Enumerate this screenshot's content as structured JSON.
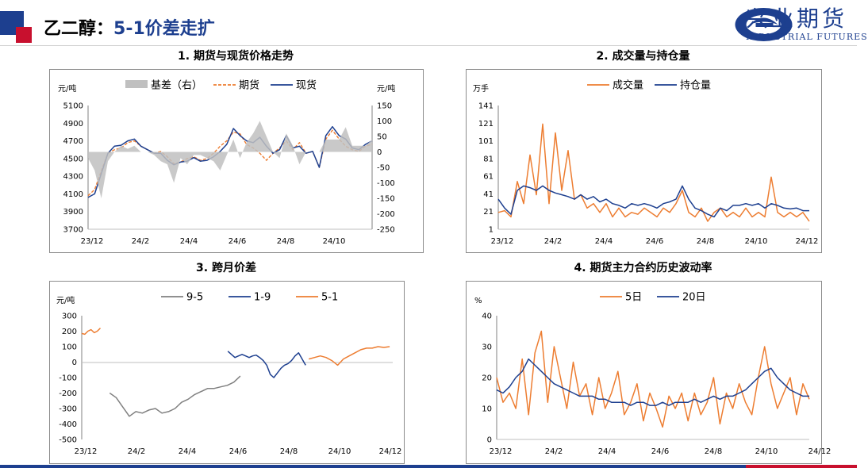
{
  "header": {
    "title_prefix": "乙二醇：",
    "title_accent": "5-1价差走扩",
    "company_cn": "兴业期货",
    "company_en": "INDUSTRIAL FUTURES"
  },
  "colors": {
    "navy": "#1d3f8f",
    "orange": "#ed7d31",
    "gray": "#808080",
    "basis_fill": "#c0c0c0",
    "red": "#c8102e"
  },
  "chart_data": [
    {
      "id": "chart1",
      "type": "line",
      "title": "1. 期货与现货价格走势",
      "ylabel": "元/吨",
      "y2label": "元/吨",
      "ylim": [
        3700,
        5100
      ],
      "yticks": [
        "5100",
        "4900",
        "4700",
        "4500",
        "4300",
        "4100",
        "3900",
        "3700"
      ],
      "y2lim": [
        -250,
        150
      ],
      "y2ticks": [
        "150",
        "100",
        "50",
        "0",
        "-50",
        "-100",
        "-150",
        "-200",
        "-250"
      ],
      "xticks": [
        "23/12",
        "24/2",
        "24/4",
        "24/6",
        "24/8",
        "24/10"
      ],
      "legend": [
        "基差（右）",
        "期货",
        "现货"
      ],
      "series": [
        {
          "name": "期货",
          "style": "dashed",
          "color": "#ed7d31",
          "values": [
            4080,
            4150,
            4360,
            4560,
            4600,
            4620,
            4680,
            4700,
            4640,
            4600,
            4560,
            4580,
            4520,
            4440,
            4460,
            4500,
            4520,
            4480,
            4500,
            4560,
            4640,
            4700,
            4800,
            4780,
            4660,
            4620,
            4560,
            4480,
            4560,
            4620,
            4700,
            4600,
            4680,
            4560,
            4580,
            4400,
            4720,
            4820,
            4720,
            4640,
            4600,
            4580,
            4640,
            4660
          ]
        },
        {
          "name": "现货",
          "style": "solid",
          "color": "#1d3f8f",
          "values": [
            4060,
            4100,
            4330,
            4560,
            4640,
            4650,
            4700,
            4720,
            4640,
            4600,
            4560,
            4560,
            4480,
            4430,
            4460,
            4470,
            4510,
            4470,
            4480,
            4520,
            4580,
            4660,
            4840,
            4760,
            4700,
            4680,
            4740,
            4640,
            4560,
            4600,
            4760,
            4620,
            4640,
            4560,
            4580,
            4400,
            4760,
            4860,
            4760,
            4720,
            4620,
            4600,
            4660,
            4700
          ]
        },
        {
          "name": "基差（右）",
          "style": "area",
          "color": "#c0c0c0",
          "values": [
            -20,
            -60,
            -150,
            -30,
            0,
            20,
            10,
            20,
            0,
            0,
            -10,
            -30,
            -40,
            -100,
            -20,
            -40,
            -10,
            -10,
            -20,
            -30,
            -60,
            -10,
            40,
            -20,
            30,
            60,
            100,
            50,
            0,
            -20,
            60,
            20,
            -40,
            0,
            0,
            0,
            40,
            40,
            40,
            80,
            20,
            20,
            20,
            40
          ]
        }
      ]
    },
    {
      "id": "chart2",
      "type": "line",
      "title": "2. 成交量与持仓量",
      "ylabel": "万手",
      "ylim": [
        1,
        141
      ],
      "yticks": [
        "141",
        "121",
        "101",
        "81",
        "61",
        "41",
        "21",
        "1"
      ],
      "xticks": [
        "23/12",
        "24/2",
        "24/4",
        "24/6",
        "24/8",
        "24/10",
        "24/12"
      ],
      "legend": [
        "成交量",
        "持仓量"
      ],
      "series": [
        {
          "name": "成交量",
          "color": "#ed7d31",
          "values": [
            20,
            22,
            15,
            55,
            30,
            85,
            40,
            120,
            30,
            110,
            45,
            90,
            35,
            40,
            25,
            30,
            20,
            30,
            15,
            25,
            15,
            20,
            18,
            25,
            20,
            15,
            25,
            20,
            30,
            45,
            20,
            15,
            25,
            10,
            20,
            25,
            15,
            20,
            15,
            25,
            15,
            20,
            15,
            60,
            20,
            15,
            20,
            15,
            20,
            10
          ]
        },
        {
          "name": "持仓量",
          "color": "#1d3f8f",
          "values": [
            35,
            25,
            18,
            45,
            50,
            48,
            45,
            50,
            45,
            42,
            40,
            38,
            35,
            40,
            35,
            38,
            32,
            35,
            30,
            28,
            25,
            30,
            28,
            30,
            28,
            25,
            30,
            32,
            35,
            50,
            35,
            25,
            22,
            18,
            15,
            25,
            22,
            28,
            28,
            30,
            28,
            30,
            25,
            30,
            28,
            25,
            24,
            25,
            22,
            22
          ]
        }
      ]
    },
    {
      "id": "chart3",
      "type": "line",
      "title": "3. 跨月价差",
      "ylabel": "元/吨",
      "ylim": [
        -500,
        300
      ],
      "yticks": [
        "300",
        "200",
        "100",
        "0",
        "-100",
        "-200",
        "-300",
        "-400",
        "-500"
      ],
      "xticks": [
        "23/12",
        "24/2",
        "24/4",
        "24/6",
        "24/8",
        "24/10",
        "24/12"
      ],
      "legend": [
        "9-5",
        "1-9",
        "5-1"
      ],
      "series": [
        {
          "name": "9-5",
          "color": "#808080",
          "segment": "9-5",
          "values": [
            -200,
            -230,
            -290,
            -350,
            -320,
            -330,
            -310,
            -300,
            -330,
            -320,
            -300,
            -260,
            -240,
            -210,
            -190,
            -170,
            -170,
            -160,
            -150,
            -130,
            -90
          ]
        },
        {
          "name": "1-9",
          "color": "#1d3f8f",
          "segment": "1-9",
          "values": [
            70,
            50,
            30,
            40,
            50,
            40,
            30,
            40,
            45,
            30,
            10,
            -20,
            -80,
            -100,
            -70,
            -40,
            -20,
            -10,
            10,
            40,
            60,
            20,
            -20
          ]
        },
        {
          "name": "5-1",
          "color": "#ed7d31",
          "segment": "5-1",
          "values": [
            185,
            180,
            200,
            210,
            190,
            200,
            220
          ]
        },
        {
          "name": "5-1-late",
          "color": "#ed7d31",
          "segment": "5-1-late",
          "values": [
            20,
            30,
            40,
            30,
            10,
            -20,
            20,
            40,
            60,
            80,
            90,
            90,
            100,
            95,
            100
          ]
        }
      ]
    },
    {
      "id": "chart4",
      "type": "line",
      "title": "4. 期货主力合约历史波动率",
      "ylabel": "%",
      "ylim": [
        0,
        40
      ],
      "yticks": [
        "40",
        "30",
        "20",
        "10",
        "0"
      ],
      "xticks": [
        "23/12",
        "24/2",
        "24/4",
        "24/6",
        "24/8",
        "24/10",
        "24/12"
      ],
      "legend": [
        "5日",
        "20日"
      ],
      "series": [
        {
          "name": "5日",
          "color": "#ed7d31",
          "values": [
            20,
            12,
            15,
            10,
            26,
            8,
            28,
            35,
            12,
            30,
            20,
            10,
            25,
            14,
            18,
            8,
            20,
            10,
            15,
            22,
            8,
            12,
            18,
            6,
            15,
            10,
            4,
            14,
            10,
            15,
            6,
            15,
            8,
            12,
            20,
            5,
            15,
            10,
            18,
            12,
            8,
            20,
            30,
            18,
            10,
            15,
            20,
            8,
            18,
            13
          ]
        },
        {
          "name": "20日",
          "color": "#1d3f8f",
          "values": [
            16,
            15,
            17,
            20,
            22,
            26,
            24,
            22,
            20,
            18,
            17,
            16,
            15,
            14,
            14,
            14,
            13,
            13,
            12,
            12,
            12,
            11,
            12,
            12,
            11,
            11,
            12,
            11,
            12,
            12,
            12,
            13,
            12,
            13,
            14,
            13,
            14,
            14,
            15,
            16,
            18,
            20,
            22,
            23,
            20,
            18,
            16,
            15,
            14,
            14
          ]
        }
      ]
    }
  ]
}
